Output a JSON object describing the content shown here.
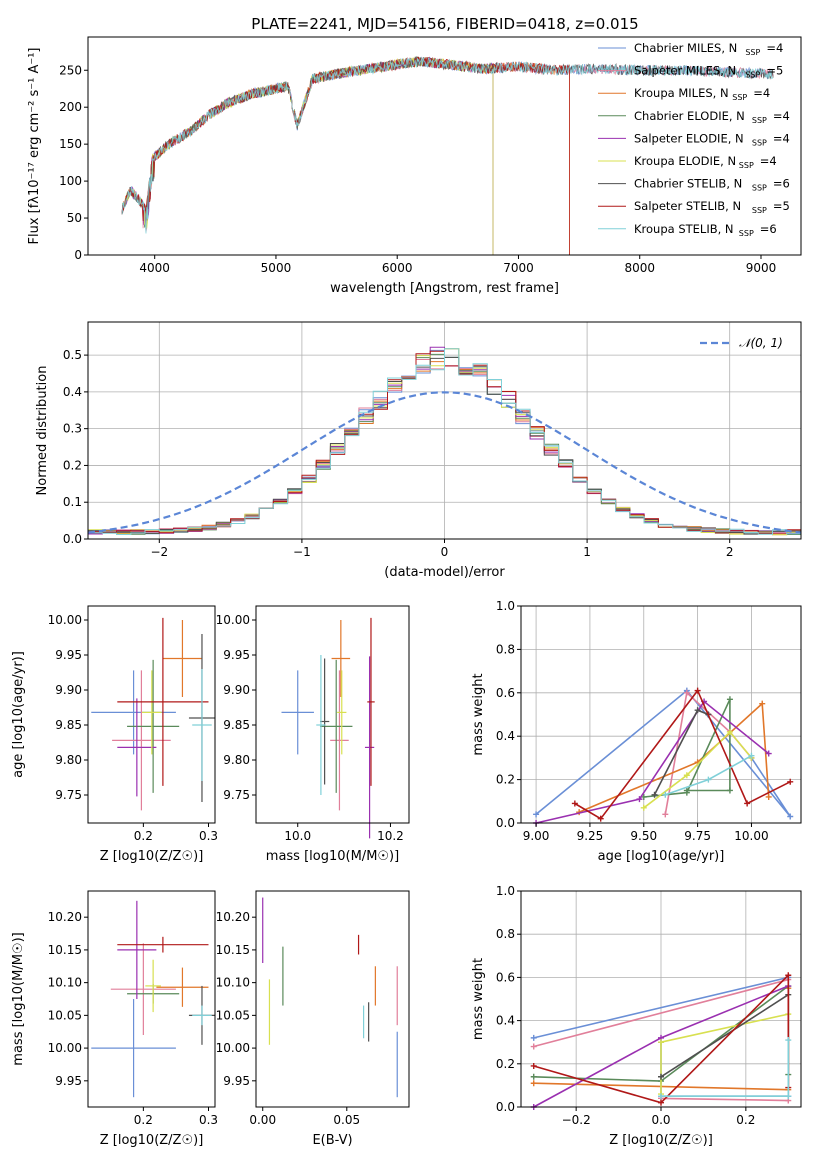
{
  "figure": {
    "title": "PLATE=2241, MJD=54156, FIBERID=0418, z=0.015"
  },
  "palette": [
    "#6a8fd6",
    "#e17f9a",
    "#e1772a",
    "#5a8a5a",
    "#9a30b0",
    "#d8e050",
    "#505050",
    "#b01818",
    "#80d0d8"
  ],
  "chart_data": [
    {
      "id": "spectrum",
      "type": "line",
      "xlabel": "wavelength [Angstrom, rest frame]",
      "ylabel": "Flux [fλ10⁻¹⁷ erg cm⁻² s⁻¹ A⁻¹]",
      "xlim": [
        3450,
        9330
      ],
      "ylim": [
        0,
        295
      ],
      "xticks": [
        4000,
        5000,
        6000,
        7000,
        8000,
        9000
      ],
      "yticks": [
        0,
        50,
        100,
        150,
        200,
        250
      ],
      "legend_position": "upper-right",
      "continuum": [
        [
          3730,
          62
        ],
        [
          3800,
          88
        ],
        [
          3870,
          75
        ],
        [
          3930,
          60
        ],
        [
          3980,
          130
        ],
        [
          4100,
          148
        ],
        [
          4300,
          168
        ],
        [
          4450,
          190
        ],
        [
          4600,
          205
        ],
        [
          4800,
          218
        ],
        [
          5000,
          225
        ],
        [
          5100,
          228
        ],
        [
          5175,
          175
        ],
        [
          5300,
          238
        ],
        [
          5500,
          245
        ],
        [
          5700,
          250
        ],
        [
          5893,
          255
        ],
        [
          6000,
          258
        ],
        [
          6200,
          262
        ],
        [
          6400,
          258
        ],
        [
          6563,
          255
        ],
        [
          6700,
          252
        ],
        [
          7000,
          255
        ],
        [
          7300,
          250
        ],
        [
          7600,
          252
        ],
        [
          8000,
          250
        ],
        [
          8200,
          250
        ],
        [
          8500,
          249
        ],
        [
          8800,
          247
        ],
        [
          9100,
          245
        ]
      ],
      "dropouts": {
        "Kroupa ELODIE": 6790,
        "Salpeter STELIB": 7420
      },
      "series": [
        {
          "name": "Chabrier MILES",
          "nssp": "4",
          "color": "#6a8fd6",
          "end": 9100
        },
        {
          "name": "Salpeter MILES",
          "nssp": "5",
          "color": "#e17f9a",
          "end": 9100
        },
        {
          "name": "Kroupa MILES",
          "nssp": "4",
          "color": "#e1772a",
          "end": 7420
        },
        {
          "name": "Chabrier ELODIE",
          "nssp": "4",
          "color": "#5a8a5a",
          "end": 6790
        },
        {
          "name": "Salpeter ELODIE",
          "nssp": "4",
          "color": "#9a30b0",
          "end": 6790
        },
        {
          "name": "Kroupa ELODIE",
          "nssp": "4",
          "color": "#d8e050",
          "end": 6790
        },
        {
          "name": "Chabrier STELIB",
          "nssp": "6",
          "color": "#505050",
          "end": 9100
        },
        {
          "name": "Salpeter STELIB",
          "nssp": "5",
          "color": "#b01818",
          "end": 7420
        },
        {
          "name": "Kroupa STELIB",
          "nssp": "6",
          "color": "#80d0d8",
          "end": 9100
        }
      ]
    },
    {
      "id": "residuals",
      "type": "line",
      "xlabel": "(data-model)/error",
      "ylabel": "Normed distribution",
      "xlim": [
        -2.5,
        2.5
      ],
      "ylim": [
        0,
        0.59
      ],
      "xticks": [
        -2,
        -1,
        0,
        1,
        2
      ],
      "yticks": [
        0.0,
        0.1,
        0.2,
        0.3,
        0.4,
        0.5
      ],
      "grid": true,
      "bin_width": 0.1,
      "reference": {
        "name": "𝒩(0, 1)",
        "color": "#5b86d6",
        "style": "dashed"
      },
      "legend_position": "upper-right"
    },
    {
      "id": "age-vs-Z",
      "type": "scatter",
      "xlabel": "Z [log10(Z/Z☉)]",
      "ylabel": "age  [log10(age/yr)]",
      "xlim": [
        0.115,
        0.31
      ],
      "ylim": [
        9.71,
        10.02
      ],
      "xticks": [
        0.2,
        0.3
      ],
      "yticks": [
        9.75,
        9.8,
        9.85,
        9.9,
        9.95,
        10.0
      ],
      "points": [
        {
          "x": 0.185,
          "y": 9.868,
          "xerr": 0.065,
          "yerr": 0.06
        },
        {
          "x": 0.197,
          "y": 9.828,
          "xerr": 0.045,
          "yerr": 0.1
        },
        {
          "x": 0.26,
          "y": 9.945,
          "xerr": 0.03,
          "yerr": 0.055
        },
        {
          "x": 0.215,
          "y": 9.848,
          "xerr": 0.04,
          "yerr": 0.095
        },
        {
          "x": 0.19,
          "y": 9.818,
          "xerr": 0.03,
          "yerr": 0.07
        },
        {
          "x": 0.213,
          "y": 9.868,
          "xerr": 0.015,
          "yerr": 0.06
        },
        {
          "x": 0.29,
          "y": 9.86,
          "xerr": 0.02,
          "yerr": 0.12
        },
        {
          "x": 0.23,
          "y": 9.883,
          "xerr": 0.07,
          "yerr": 0.12
        },
        {
          "x": 0.29,
          "y": 9.85,
          "xerr": 0.015,
          "yerr": 0.08
        }
      ]
    },
    {
      "id": "age-vs-mass",
      "type": "scatter",
      "xlabel": "mass [log10(M/M☉)]",
      "ylabel": "",
      "xlim": [
        9.91,
        10.24
      ],
      "ylim": [
        9.71,
        10.02
      ],
      "xticks": [
        10.0,
        10.2
      ],
      "yticks": [
        9.75,
        9.8,
        9.85,
        9.9,
        9.95,
        10.0
      ],
      "points": [
        {
          "x": 10.0,
          "y": 9.868,
          "xerr": 0.035,
          "yerr": 0.06
        },
        {
          "x": 10.09,
          "y": 9.828,
          "xerr": 0.02,
          "yerr": 0.1
        },
        {
          "x": 10.093,
          "y": 9.945,
          "xerr": 0.02,
          "yerr": 0.055
        },
        {
          "x": 10.083,
          "y": 9.848,
          "xerr": 0.035,
          "yerr": 0.095
        },
        {
          "x": 10.155,
          "y": 9.818,
          "xerr": 0.01,
          "yerr": 0.13
        },
        {
          "x": 10.095,
          "y": 9.868,
          "xerr": 0.01,
          "yerr": 0.06
        },
        {
          "x": 10.058,
          "y": 9.855,
          "xerr": 0.01,
          "yerr": 0.09
        },
        {
          "x": 10.158,
          "y": 9.883,
          "xerr": 0.008,
          "yerr": 0.12
        },
        {
          "x": 10.05,
          "y": 9.85,
          "xerr": 0.01,
          "yerr": 0.1
        }
      ]
    },
    {
      "id": "massweight-vs-age",
      "type": "line",
      "xlabel": "age  [log10(age/yr)]",
      "ylabel": "mass weight",
      "xlim": [
        8.93,
        10.23
      ],
      "ylim": [
        0,
        1
      ],
      "xticks": [
        9.0,
        9.25,
        9.5,
        9.75,
        10.0
      ],
      "yticks": [
        0.0,
        0.2,
        0.4,
        0.6,
        0.8,
        1.0
      ],
      "grid": true,
      "series": [
        {
          "values": [
            [
              9.0,
              0.04
            ],
            [
              9.7,
              0.61
            ],
            [
              10.18,
              0.03
            ],
            [
              10.0,
              0.3
            ]
          ]
        },
        {
          "values": [
            [
              9.6,
              0.04
            ],
            [
              9.7,
              0.6
            ],
            [
              9.9,
              0.42
            ],
            [
              10.0,
              0.3
            ]
          ]
        },
        {
          "values": [
            [
              9.2,
              0.05
            ],
            [
              9.75,
              0.28
            ],
            [
              10.05,
              0.55
            ],
            [
              10.08,
              0.12
            ]
          ]
        },
        {
          "values": [
            [
              9.5,
              0.12
            ],
            [
              9.7,
              0.14
            ],
            [
              9.9,
              0.57
            ],
            [
              9.9,
              0.15
            ],
            [
              9.7,
              0.15
            ]
          ]
        },
        {
          "values": [
            [
              9.0,
              0.0
            ],
            [
              9.48,
              0.11
            ],
            [
              9.78,
              0.56
            ],
            [
              10.08,
              0.32
            ]
          ]
        },
        {
          "values": [
            [
              9.5,
              0.07
            ],
            [
              9.7,
              0.22
            ],
            [
              9.9,
              0.42
            ],
            [
              10.0,
              0.3
            ]
          ]
        },
        {
          "values": [
            [
              9.55,
              0.13
            ],
            [
              9.75,
              0.52
            ],
            [
              9.8,
              0.5
            ]
          ]
        },
        {
          "values": [
            [
              9.18,
              0.09
            ],
            [
              9.3,
              0.02
            ],
            [
              9.75,
              0.61
            ],
            [
              9.98,
              0.09
            ],
            [
              10.18,
              0.19
            ]
          ]
        },
        {
          "values": [
            [
              9.6,
              0.13
            ],
            [
              9.8,
              0.2
            ],
            [
              10.0,
              0.31
            ]
          ]
        }
      ]
    },
    {
      "id": "mass-vs-Z",
      "type": "scatter",
      "xlabel": "Z [log10(Z/Z☉)]",
      "ylabel": "mass [log10(M/M☉)]",
      "xlim": [
        0.115,
        0.31
      ],
      "ylim": [
        9.91,
        10.24
      ],
      "xticks": [
        0.2,
        0.3
      ],
      "yticks": [
        9.95,
        10.0,
        10.05,
        10.1,
        10.15,
        10.2
      ],
      "points": [
        {
          "x": 0.185,
          "y": 10.0,
          "xerr": 0.065,
          "yerr": 0.075
        },
        {
          "x": 0.2,
          "y": 10.09,
          "xerr": 0.05,
          "yerr": 0.07
        },
        {
          "x": 0.26,
          "y": 10.093,
          "xerr": 0.04,
          "yerr": 0.03
        },
        {
          "x": 0.215,
          "y": 10.083,
          "xerr": 0.04,
          "yerr": 0.015
        },
        {
          "x": 0.19,
          "y": 10.15,
          "xerr": 0.03,
          "yerr": 0.075
        },
        {
          "x": 0.215,
          "y": 10.095,
          "xerr": 0.012,
          "yerr": 0.04
        },
        {
          "x": 0.29,
          "y": 10.05,
          "xerr": 0.02,
          "yerr": 0.045
        },
        {
          "x": 0.23,
          "y": 10.158,
          "xerr": 0.07,
          "yerr": 0.012
        },
        {
          "x": 0.29,
          "y": 10.05,
          "xerr": 0.015,
          "yerr": 0.015
        }
      ]
    },
    {
      "id": "mass-vs-ebv",
      "type": "scatter",
      "xlabel": "E(B-V)",
      "ylabel": "",
      "xlim": [
        -0.004,
        0.087
      ],
      "ylim": [
        9.91,
        10.24
      ],
      "xticks": [
        0.0,
        0.05
      ],
      "yticks": [
        9.95,
        10.0,
        10.05,
        10.1,
        10.15,
        10.2
      ],
      "points": [
        {
          "x": 0.08,
          "y": 9.975,
          "yerr": 0.05
        },
        {
          "x": 0.08,
          "y": 10.08,
          "yerr": 0.045
        },
        {
          "x": 0.067,
          "y": 10.095,
          "yerr": 0.03
        },
        {
          "x": 0.012,
          "y": 10.11,
          "yerr": 0.045
        },
        {
          "x": 0.0,
          "y": 10.18,
          "yerr": 0.05
        },
        {
          "x": 0.004,
          "y": 10.055,
          "yerr": 0.05
        },
        {
          "x": 0.063,
          "y": 10.04,
          "yerr": 0.03
        },
        {
          "x": 0.057,
          "y": 10.158,
          "yerr": 0.015
        },
        {
          "x": 0.06,
          "y": 10.04,
          "yerr": 0.025
        }
      ]
    },
    {
      "id": "massweight-vs-Z",
      "type": "line",
      "xlabel": "Z [log10(Z/Z☉)]",
      "ylabel": "mass weight",
      "xlim": [
        -0.33,
        0.33
      ],
      "ylim": [
        0,
        1
      ],
      "xticks": [
        -0.2,
        0.0,
        0.2
      ],
      "yticks": [
        0.0,
        0.2,
        0.4,
        0.6,
        0.8,
        1.0
      ],
      "grid": true,
      "series": [
        {
          "values": [
            [
              -0.3,
              0.32
            ],
            [
              0.3,
              0.6
            ],
            [
              0.3,
              0.05
            ],
            [
              0.0,
              0.05
            ],
            [
              0.0,
              0.3
            ]
          ]
        },
        {
          "values": [
            [
              -0.3,
              0.28
            ],
            [
              0.3,
              0.59
            ],
            [
              0.3,
              0.03
            ],
            [
              0.0,
              0.04
            ]
          ]
        },
        {
          "values": [
            [
              -0.3,
              0.11
            ],
            [
              0.3,
              0.08
            ],
            [
              0.3,
              0.55
            ]
          ]
        },
        {
          "values": [
            [
              -0.3,
              0.14
            ],
            [
              0.0,
              0.12
            ],
            [
              0.3,
              0.56
            ],
            [
              0.3,
              0.15
            ]
          ]
        },
        {
          "values": [
            [
              -0.3,
              0.0
            ],
            [
              0.0,
              0.32
            ],
            [
              0.3,
              0.56
            ]
          ]
        },
        {
          "values": [
            [
              0.0,
              0.06
            ],
            [
              0.0,
              0.3
            ],
            [
              0.3,
              0.43
            ]
          ]
        },
        {
          "values": [
            [
              0.0,
              0.14
            ],
            [
              0.3,
              0.52
            ]
          ]
        },
        {
          "values": [
            [
              -0.3,
              0.19
            ],
            [
              0.0,
              0.02
            ],
            [
              0.3,
              0.61
            ],
            [
              0.3,
              0.09
            ]
          ]
        },
        {
          "values": [
            [
              0.0,
              0.05
            ],
            [
              0.3,
              0.05
            ],
            [
              0.3,
              0.31
            ]
          ]
        }
      ]
    }
  ]
}
